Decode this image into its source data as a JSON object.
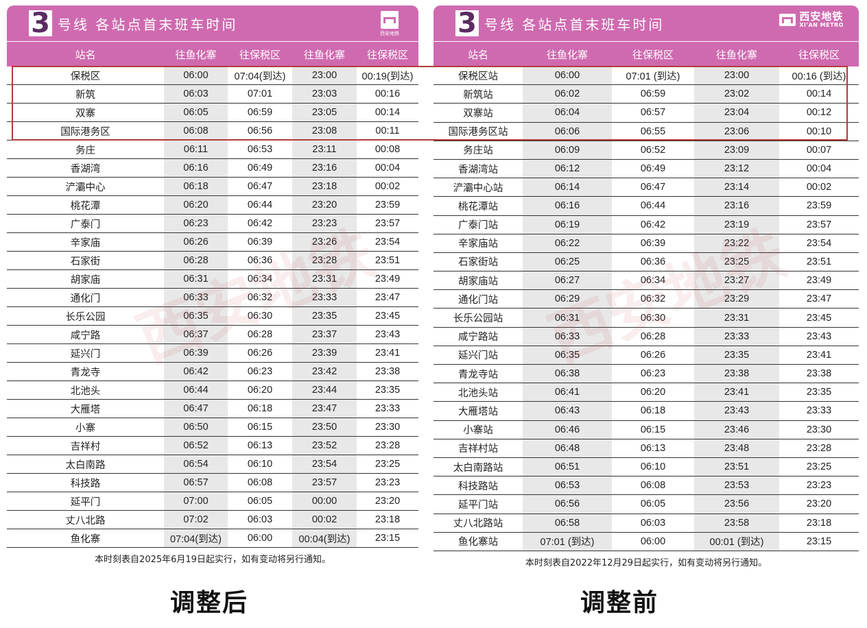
{
  "left_panel": {
    "line_number": "3",
    "title": "号线  各站点首末班车时间",
    "logo_text": "西安地铁",
    "columns": [
      "站名",
      "往鱼化寨",
      "往保税区",
      "往鱼化寨",
      "往保税区"
    ],
    "rows": [
      [
        "保税区",
        "06:00",
        "07:04(到达)",
        "23:00",
        "00:19(到达)"
      ],
      [
        "新筑",
        "06:03",
        "07:01",
        "23:03",
        "00:16"
      ],
      [
        "双寨",
        "06:05",
        "06:59",
        "23:05",
        "00:14"
      ],
      [
        "国际港务区",
        "06:08",
        "06:56",
        "23:08",
        "00:11"
      ],
      [
        "务庄",
        "06:11",
        "06:53",
        "23:11",
        "00:08"
      ],
      [
        "香湖湾",
        "06:16",
        "06:49",
        "23:16",
        "00:04"
      ],
      [
        "浐灞中心",
        "06:18",
        "06:47",
        "23:18",
        "00:02"
      ],
      [
        "桃花潭",
        "06:20",
        "06:44",
        "23:20",
        "23:59"
      ],
      [
        "广泰门",
        "06:23",
        "06:42",
        "23:23",
        "23:57"
      ],
      [
        "辛家庙",
        "06:26",
        "06:39",
        "23:26",
        "23:54"
      ],
      [
        "石家街",
        "06:28",
        "06:36",
        "23:28",
        "23:51"
      ],
      [
        "胡家庙",
        "06:31",
        "06:34",
        "23:31",
        "23:49"
      ],
      [
        "通化门",
        "06:33",
        "06:32",
        "23:33",
        "23:47"
      ],
      [
        "长乐公园",
        "06:35",
        "06:30",
        "23:35",
        "23:45"
      ],
      [
        "咸宁路",
        "06:37",
        "06:28",
        "23:37",
        "23:43"
      ],
      [
        "延兴门",
        "06:39",
        "06:26",
        "23:39",
        "23:41"
      ],
      [
        "青龙寺",
        "06:42",
        "06:23",
        "23:42",
        "23:38"
      ],
      [
        "北池头",
        "06:44",
        "06:20",
        "23:44",
        "23:35"
      ],
      [
        "大雁塔",
        "06:47",
        "06:18",
        "23:47",
        "23:33"
      ],
      [
        "小寨",
        "06:50",
        "06:15",
        "23:50",
        "23:30"
      ],
      [
        "吉祥村",
        "06:52",
        "06:13",
        "23:52",
        "23:28"
      ],
      [
        "太白南路",
        "06:54",
        "06:10",
        "23:54",
        "23:25"
      ],
      [
        "科技路",
        "06:57",
        "06:08",
        "23:57",
        "23:23"
      ],
      [
        "延平门",
        "07:00",
        "06:05",
        "00:00",
        "23:20"
      ],
      [
        "丈八北路",
        "07:02",
        "06:03",
        "00:02",
        "23:18"
      ],
      [
        "鱼化寨",
        "07:04(到达)",
        "06:00",
        "00:04(到达)",
        "23:15"
      ]
    ],
    "footnote": "本时刻表自2025年6月19日起实行，如有变动将另行通知。",
    "caption": "调整后"
  },
  "right_panel": {
    "line_number": "3",
    "title": "号线  各站点首末班车时间",
    "logo_cn": "西安地铁",
    "logo_en": "XI'AN METRO",
    "columns": [
      "站名",
      "往鱼化寨",
      "往保税区",
      "往鱼化寨",
      "往保税区"
    ],
    "rows": [
      [
        "保税区站",
        "06:00",
        "07:01 (到达)",
        "23:00",
        "00:16 (到达)"
      ],
      [
        "新筑站",
        "06:02",
        "06:59",
        "23:02",
        "00:14"
      ],
      [
        "双寨站",
        "06:04",
        "06:57",
        "23:04",
        "00:12"
      ],
      [
        "国际港务区站",
        "06:06",
        "06:55",
        "23:06",
        "00:10"
      ],
      [
        "务庄站",
        "06:09",
        "06:52",
        "23:09",
        "00:07"
      ],
      [
        "香湖湾站",
        "06:12",
        "06:49",
        "23:12",
        "00:04"
      ],
      [
        "浐灞中心站",
        "06:14",
        "06:47",
        "23:14",
        "00:02"
      ],
      [
        "桃花潭站",
        "06:16",
        "06:44",
        "23:16",
        "23:59"
      ],
      [
        "广泰门站",
        "06:19",
        "06:42",
        "23:19",
        "23:57"
      ],
      [
        "辛家庙站",
        "06:22",
        "06:39",
        "23:22",
        "23:54"
      ],
      [
        "石家街站",
        "06:25",
        "06:36",
        "23:25",
        "23:51"
      ],
      [
        "胡家庙站",
        "06:27",
        "06:34",
        "23:27",
        "23:49"
      ],
      [
        "通化门站",
        "06:29",
        "06:32",
        "23:29",
        "23:47"
      ],
      [
        "长乐公园站",
        "06:31",
        "06:30",
        "23:31",
        "23:45"
      ],
      [
        "咸宁路站",
        "06:33",
        "06:28",
        "23:33",
        "23:43"
      ],
      [
        "延兴门站",
        "06:35",
        "06:26",
        "23:35",
        "23:41"
      ],
      [
        "青龙寺站",
        "06:38",
        "06:23",
        "23:38",
        "23:38"
      ],
      [
        "北池头站",
        "06:41",
        "06:20",
        "23:41",
        "23:35"
      ],
      [
        "大雁塔站",
        "06:43",
        "06:18",
        "23:43",
        "23:33"
      ],
      [
        "小寨站",
        "06:46",
        "06:15",
        "23:46",
        "23:30"
      ],
      [
        "吉祥村站",
        "06:48",
        "06:13",
        "23:48",
        "23:28"
      ],
      [
        "太白南路站",
        "06:51",
        "06:10",
        "23:51",
        "23:25"
      ],
      [
        "科技路站",
        "06:53",
        "06:08",
        "23:53",
        "23:23"
      ],
      [
        "延平门站",
        "06:56",
        "06:05",
        "23:56",
        "23:20"
      ],
      [
        "丈八北路站",
        "06:58",
        "06:03",
        "23:58",
        "23:18"
      ],
      [
        "鱼化寨站",
        "07:01 (到达)",
        "06:00",
        "00:01 (到达)",
        "23:15"
      ]
    ],
    "footnote": "本时刻表自2022年12月29日起实行，如有变动将另行通知。",
    "caption": "调整前"
  },
  "watermark": {
    "cn": "西安地铁",
    "en": "XI'AN METRO"
  },
  "colors": {
    "brand_pink": "#cf6ab0",
    "badge_text": "#5b2c62",
    "highlight_box": "#b23a3a",
    "shaded_column": "#e8e8e8"
  },
  "icons": [
    "xian-metro-logo-icon"
  ]
}
